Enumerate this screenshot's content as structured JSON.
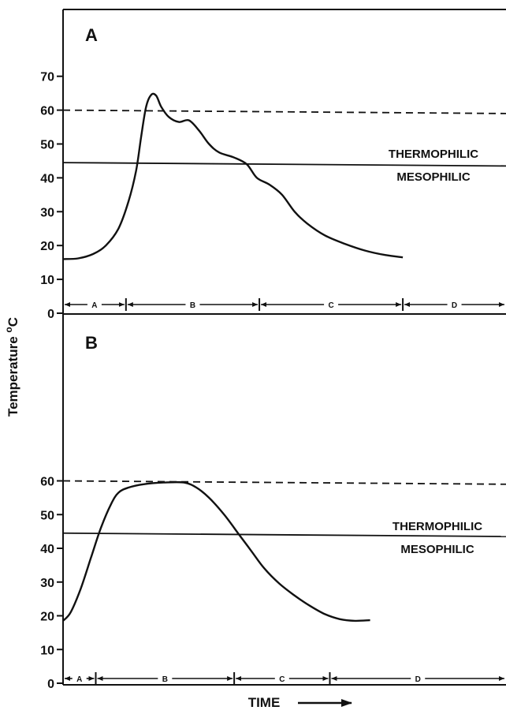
{
  "chart_data": [
    {
      "panel": "A",
      "type": "line",
      "ylabel": "Temperature °C",
      "xlabel": "TIME",
      "yticks": [
        0,
        10,
        20,
        30,
        40,
        50,
        60,
        70
      ],
      "ylim": [
        0,
        70
      ],
      "series": [
        {
          "points": [
            [
              0,
              16
            ],
            [
              3,
              16.2
            ],
            [
              6,
              17.5
            ],
            [
              8.5,
              20
            ],
            [
              11,
              25
            ],
            [
              13,
              33
            ],
            [
              14.5,
              42
            ],
            [
              15.5,
              52
            ],
            [
              16.5,
              61
            ],
            [
              17.5,
              64.5
            ],
            [
              18.5,
              64.3
            ],
            [
              19.5,
              61
            ],
            [
              21,
              58
            ],
            [
              23,
              56.5
            ],
            [
              25,
              57
            ],
            [
              27,
              54
            ],
            [
              29,
              50
            ],
            [
              31,
              47.5
            ],
            [
              34,
              46
            ],
            [
              36.5,
              44
            ],
            [
              38.5,
              40
            ],
            [
              41,
              38
            ],
            [
              43.5,
              35
            ],
            [
              46,
              30
            ],
            [
              48.5,
              26.5
            ],
            [
              52,
              23
            ],
            [
              56,
              20.5
            ],
            [
              60,
              18.5
            ],
            [
              64,
              17.2
            ],
            [
              67.5,
              16.5
            ]
          ]
        }
      ],
      "reference_lines": [
        {
          "style": "dashed",
          "from": 60,
          "to": 59
        },
        {
          "style": "solid",
          "from": 44.5,
          "to": 43.5
        }
      ],
      "zone_labels": {
        "upper": "THERMOPHILIC",
        "lower": "MESOPHILIC"
      },
      "phases": [
        {
          "label": "A",
          "start": 0,
          "end": 12.5
        },
        {
          "label": "B",
          "start": 12.5,
          "end": 39
        },
        {
          "label": "C",
          "start": 39,
          "end": 67.5
        },
        {
          "label": "D",
          "start": 67.5,
          "end": 88
        }
      ]
    },
    {
      "panel": "B",
      "type": "line",
      "ylabel": "",
      "xlabel": "TIME",
      "yticks": [
        0,
        10,
        20,
        30,
        40,
        50,
        60
      ],
      "ylim": [
        0,
        60
      ],
      "series": [
        {
          "points": [
            [
              0,
              18.5
            ],
            [
              1.5,
              21
            ],
            [
              3.5,
              28
            ],
            [
              5.5,
              37
            ],
            [
              7.5,
              46
            ],
            [
              9.5,
              53
            ],
            [
              11,
              56.5
            ],
            [
              13,
              58
            ],
            [
              16,
              59
            ],
            [
              20,
              59.5
            ],
            [
              24,
              59.5
            ],
            [
              26.5,
              58
            ],
            [
              29,
              55
            ],
            [
              32,
              50
            ],
            [
              35,
              44
            ],
            [
              37.5,
              39
            ],
            [
              40,
              34
            ],
            [
              43,
              29.5
            ],
            [
              46,
              26
            ],
            [
              49,
              23
            ],
            [
              52,
              20.5
            ],
            [
              55,
              19
            ],
            [
              58,
              18.5
            ],
            [
              61,
              18.7
            ]
          ]
        }
      ],
      "reference_lines": [
        {
          "style": "dashed",
          "from": 60,
          "to": 59
        },
        {
          "style": "solid",
          "from": 44.5,
          "to": 43.5
        }
      ],
      "zone_labels": {
        "upper": "THERMOPHILIC",
        "lower": "MESOPHILIC"
      },
      "phases": [
        {
          "label": "A",
          "start": 0,
          "end": 6.5
        },
        {
          "label": "B",
          "start": 6.5,
          "end": 34
        },
        {
          "label": "C",
          "start": 34,
          "end": 53
        },
        {
          "label": "D",
          "start": 53,
          "end": 88
        }
      ]
    }
  ]
}
